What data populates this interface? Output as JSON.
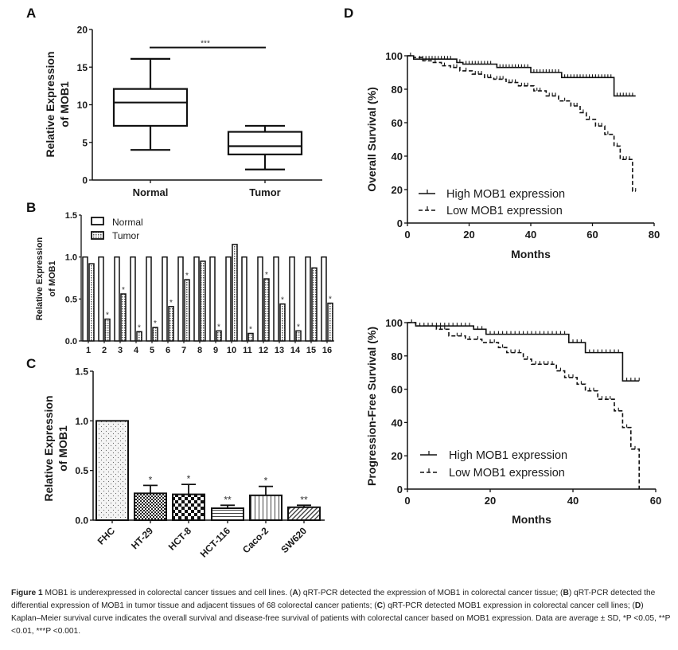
{
  "figure": {
    "caption": {
      "label": "Figure 1",
      "text_parts": [
        {
          "t": " MOB1 is underexpressed in colorectal cancer tissues and cell lines. (",
          "b": false
        },
        {
          "t": "A",
          "b": true
        },
        {
          "t": ") qRT-PCR detected the expression of MOB1 in colorectal cancer tissue; (",
          "b": false
        },
        {
          "t": "B",
          "b": true
        },
        {
          "t": ") qRT-PCR detected the differential expression of MOB1 in tumor tissue and adjacent tissues of 68 colorectal cancer patients; (",
          "b": false
        },
        {
          "t": "C",
          "b": true
        },
        {
          "t": ") qRT-PCR detected MOB1 expression in colorectal cancer cell lines; (",
          "b": false
        },
        {
          "t": "D",
          "b": true
        },
        {
          "t": ") Kaplan–Meier survival curve indicates the overall survival and disease-free survival of patients with colorectal cancer based on MOB1 expression. Data are average ± SD, *P <0.05, **P <0.01, ***P <0.001.",
          "b": false
        }
      ]
    }
  },
  "chart_data": [
    {
      "panel": "A",
      "type": "box",
      "title": "",
      "xlabel": "",
      "ylabel": "Relative Expression of MOB1",
      "ylabel_lines": [
        "Relative Expression",
        "of MOB1"
      ],
      "ylim": [
        0,
        20
      ],
      "yticks": [
        0,
        5,
        10,
        15,
        20
      ],
      "categories": [
        "Normal",
        "Tumor"
      ],
      "boxes": [
        {
          "name": "Normal",
          "min": 4.0,
          "q1": 7.2,
          "median": 10.3,
          "q3": 12.1,
          "max": 16.1
        },
        {
          "name": "Tumor",
          "min": 1.4,
          "q1": 3.4,
          "median": 4.5,
          "q3": 6.4,
          "max": 7.2
        }
      ],
      "significance": {
        "label": "***",
        "y": 17.6,
        "from": "Normal",
        "to": "Tumor"
      }
    },
    {
      "panel": "B",
      "type": "bar",
      "title": "",
      "xlabel": "",
      "ylabel": "Relative Expression of MOB1",
      "ylabel_lines": [
        "Relative Expression",
        "of MOB1"
      ],
      "ylim": [
        0,
        1.5
      ],
      "yticks": [
        "0.0",
        "0.5",
        "1.0",
        "1.5"
      ],
      "categories": [
        "1",
        "2",
        "3",
        "4",
        "5",
        "6",
        "7",
        "8",
        "9",
        "10",
        "11",
        "12",
        "13",
        "14",
        "15",
        "16"
      ],
      "legend": [
        "Normal",
        "Tumor"
      ],
      "legend_position": "top-left",
      "series": [
        {
          "name": "Normal",
          "values": [
            1,
            1,
            1,
            1,
            1,
            1,
            1,
            1,
            1,
            1,
            1,
            1,
            1,
            1,
            1,
            1
          ]
        },
        {
          "name": "Tumor",
          "values": [
            0.92,
            0.26,
            0.56,
            0.11,
            0.16,
            0.41,
            0.73,
            0.95,
            0.12,
            1.15,
            0.09,
            0.74,
            0.44,
            0.12,
            0.87,
            0.45
          ]
        }
      ],
      "annotations": [
        "",
        "*",
        "*",
        "*",
        "*",
        "*",
        "*",
        "",
        "*",
        "",
        "*",
        "*",
        "*",
        "*",
        "",
        "*"
      ]
    },
    {
      "panel": "C",
      "type": "bar",
      "title": "",
      "xlabel": "",
      "ylabel": "Relative Expression of MOB1",
      "ylabel_lines": [
        "Relative Expression",
        "of MOB1"
      ],
      "ylim": [
        0,
        1.5
      ],
      "yticks": [
        "0.0",
        "0.5",
        "1.0",
        "1.5"
      ],
      "categories": [
        "FHC",
        "HT-29",
        "HCT-8",
        "HCT-116",
        "Caco-2",
        "SW620"
      ],
      "values": [
        1.0,
        0.27,
        0.26,
        0.12,
        0.25,
        0.13
      ],
      "errors": [
        0,
        0.08,
        0.1,
        0.03,
        0.09,
        0.02
      ],
      "patterns": [
        "dots",
        "fine-check",
        "check",
        "horizontal",
        "vertical",
        "diagonal"
      ],
      "annotations": [
        "",
        "*",
        "*",
        "**",
        "*",
        "**"
      ]
    },
    {
      "panel": "D-top",
      "type": "line",
      "subtype": "kaplan-meier",
      "title": "",
      "xlabel": "Months",
      "ylabel": "Overall Survival (%)",
      "xlim": [
        0,
        80
      ],
      "ylim": [
        0,
        100
      ],
      "xticks": [
        0,
        20,
        40,
        60,
        80
      ],
      "yticks": [
        0,
        20,
        40,
        60,
        80,
        100
      ],
      "legend_position": "bottom-left",
      "series": [
        {
          "name": "High MOB1 expression",
          "style": "solid",
          "steps": [
            [
              0,
              100
            ],
            [
              2,
              98
            ],
            [
              16,
              96
            ],
            [
              18,
              95
            ],
            [
              29,
              93
            ],
            [
              40,
              90
            ],
            [
              50,
              87
            ],
            [
              67,
              76
            ],
            [
              74,
              76
            ]
          ],
          "censored_x": [
            2,
            4,
            5,
            6,
            7,
            8,
            9,
            10,
            11,
            12,
            13,
            14,
            17,
            19,
            20,
            21,
            22,
            23,
            24,
            25,
            26,
            27,
            30,
            31,
            32,
            33,
            34,
            35,
            36,
            37,
            38,
            39,
            41,
            42,
            43,
            44,
            45,
            46,
            47,
            48,
            49,
            51,
            52,
            53,
            54,
            55,
            56,
            57,
            58,
            59,
            60,
            61,
            62,
            63,
            64,
            65,
            66,
            68,
            69,
            70,
            71,
            72,
            73
          ]
        },
        {
          "name": "Low MOB1 expression",
          "style": "dashed",
          "steps": [
            [
              0,
              100
            ],
            [
              2,
              99
            ],
            [
              5,
              97
            ],
            [
              8,
              96
            ],
            [
              11,
              94
            ],
            [
              14,
              93
            ],
            [
              17,
              91
            ],
            [
              21,
              89
            ],
            [
              25,
              87
            ],
            [
              28,
              86
            ],
            [
              32,
              84
            ],
            [
              36,
              82
            ],
            [
              41,
              79
            ],
            [
              45,
              76
            ],
            [
              49,
              73
            ],
            [
              53,
              70
            ],
            [
              56,
              66
            ],
            [
              58,
              62
            ],
            [
              61,
              58
            ],
            [
              64,
              53
            ],
            [
              67,
              46
            ],
            [
              69,
              38
            ],
            [
              73,
              19
            ],
            [
              74,
              19
            ]
          ],
          "censored_x": [
            1,
            6,
            9,
            12,
            15,
            16,
            19,
            22,
            23,
            24,
            26,
            27,
            29,
            30,
            31,
            33,
            34,
            35,
            37,
            38,
            39,
            42,
            43,
            46,
            47,
            48,
            51,
            54,
            55,
            57,
            59,
            62,
            63,
            65,
            68,
            70,
            71,
            72,
            74
          ]
        }
      ]
    },
    {
      "panel": "D-bottom",
      "type": "line",
      "subtype": "kaplan-meier",
      "title": "",
      "xlabel": "Months",
      "ylabel": "Progression-Free Survival (%)",
      "xlim": [
        0,
        60
      ],
      "ylim": [
        0,
        100
      ],
      "xticks": [
        0,
        20,
        40,
        60
      ],
      "yticks": [
        0,
        20,
        40,
        60,
        80,
        100
      ],
      "legend_position": "bottom-left",
      "series": [
        {
          "name": "High MOB1 expression",
          "style": "solid",
          "steps": [
            [
              0,
              100
            ],
            [
              2,
              98
            ],
            [
              16,
              96
            ],
            [
              19,
              93
            ],
            [
              39,
              88
            ],
            [
              43,
              82
            ],
            [
              52,
              65
            ],
            [
              56,
              65
            ]
          ],
          "censored_x": [
            1,
            3,
            4,
            5,
            6,
            7,
            8,
            9,
            10,
            11,
            12,
            13,
            14,
            15,
            17,
            18,
            20,
            21,
            22,
            23,
            24,
            25,
            26,
            27,
            28,
            29,
            30,
            31,
            32,
            33,
            34,
            35,
            36,
            37,
            38,
            40,
            41,
            42,
            44,
            45,
            46,
            47,
            48,
            49,
            50,
            51,
            53,
            54,
            55,
            56
          ]
        },
        {
          "name": "Low MOB1 expression",
          "style": "dashed",
          "steps": [
            [
              0,
              100
            ],
            [
              2,
              98
            ],
            [
              7,
              96
            ],
            [
              10,
              92
            ],
            [
              14,
              90
            ],
            [
              18,
              88
            ],
            [
              22,
              85
            ],
            [
              24,
              82
            ],
            [
              28,
              78
            ],
            [
              30,
              75
            ],
            [
              36,
              71
            ],
            [
              38,
              67
            ],
            [
              41,
              63
            ],
            [
              43,
              59
            ],
            [
              46,
              54
            ],
            [
              50,
              47
            ],
            [
              52,
              37
            ],
            [
              54,
              24
            ],
            [
              56,
              0
            ]
          ],
          "censored_x": [
            8,
            9,
            12,
            13,
            15,
            17,
            20,
            21,
            23,
            25,
            26,
            27,
            29,
            31,
            32,
            33,
            34,
            35,
            37,
            39,
            40,
            42,
            44,
            45,
            47,
            48,
            49,
            51,
            53,
            55
          ]
        }
      ]
    }
  ],
  "panels": {
    "a": {
      "letter": "A"
    },
    "b": {
      "letter": "B"
    },
    "c": {
      "letter": "C"
    },
    "d": {
      "letter": "D"
    }
  }
}
